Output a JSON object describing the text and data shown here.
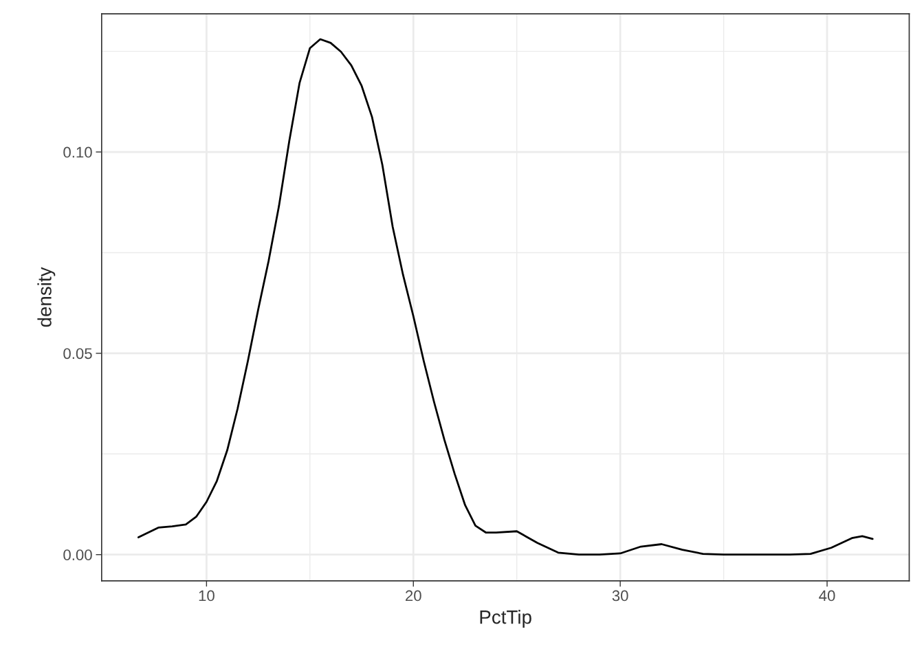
{
  "chart_data": {
    "type": "line",
    "xlabel": "PctTip",
    "ylabel": "density",
    "x": [
      6.71,
      7.67,
      8.34,
      9.0,
      9.5,
      10.0,
      10.5,
      11.0,
      11.5,
      12.0,
      12.5,
      13.0,
      13.5,
      14.0,
      14.5,
      15.0,
      15.5,
      16.0,
      16.5,
      17.0,
      17.5,
      18.0,
      18.5,
      19.0,
      19.5,
      20.0,
      20.5,
      21.0,
      21.5,
      22.0,
      22.5,
      23.0,
      23.5,
      24.0,
      25.0,
      26.0,
      27.0,
      28.0,
      29.0,
      30.0,
      31.0,
      32.0,
      33.0,
      34.0,
      35.0,
      36.7,
      38.2,
      39.2,
      40.2,
      41.2,
      41.7,
      42.2
    ],
    "series": [
      {
        "color": "#000000",
        "values": [
          0.0043,
          0.0067,
          0.007,
          0.0075,
          0.0094,
          0.0131,
          0.0183,
          0.0259,
          0.0362,
          0.0481,
          0.0609,
          0.0729,
          0.0865,
          0.1027,
          0.1172,
          0.1258,
          0.128,
          0.1271,
          0.1249,
          0.1215,
          0.1164,
          0.1087,
          0.0968,
          0.0814,
          0.0695,
          0.0592,
          0.0481,
          0.0379,
          0.0285,
          0.02,
          0.0123,
          0.0072,
          0.0055,
          0.0055,
          0.0058,
          0.0029,
          0.0005,
          0.0,
          0.0,
          0.0003,
          0.002,
          0.0026,
          0.0012,
          0.0002,
          0.0,
          0.0,
          0.0,
          0.0002,
          0.0017,
          0.0041,
          0.0046,
          0.0039
        ]
      }
    ],
    "xlim": [
      4.93,
      43.97
    ],
    "ylim": [
      -0.0065,
      0.1343
    ],
    "xticks": [
      10,
      {
        "value": 15,
        "label": null
      },
      20,
      {
        "value": 25,
        "label": null
      },
      30,
      {
        "value": 35,
        "label": null
      },
      40
    ],
    "yticks": [
      {
        "value": 0,
        "label": "0.00"
      },
      {
        "value": 0.025,
        "label": null
      },
      {
        "value": 0.05,
        "label": "0.05"
      },
      {
        "value": 0.075,
        "label": null
      },
      {
        "value": 0.1,
        "label": "0.10"
      },
      {
        "value": 0.125,
        "label": null
      }
    ],
    "grid": true,
    "line_style": "solid",
    "marker": "none"
  }
}
